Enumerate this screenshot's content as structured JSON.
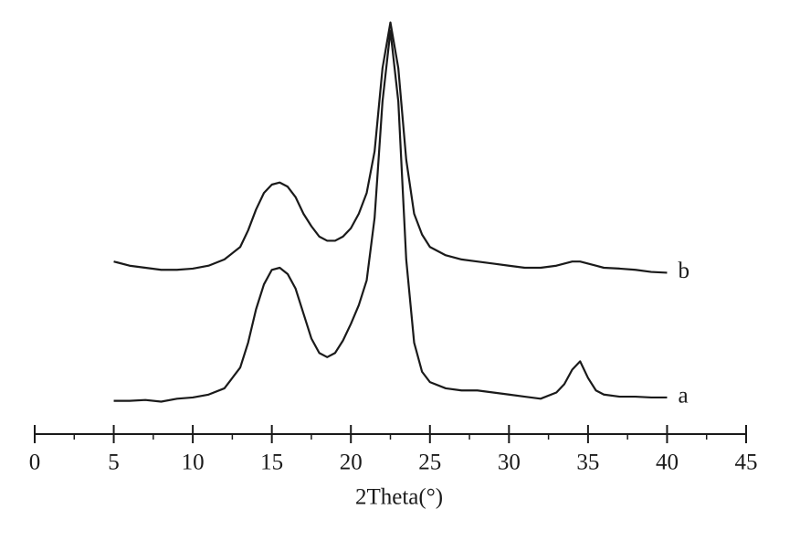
{
  "chart_data": {
    "type": "line",
    "x_label": "2Theta(°)",
    "x": [
      5,
      6,
      7,
      8,
      9,
      10,
      11,
      12,
      13,
      13.5,
      14,
      14.5,
      15,
      15.5,
      16,
      16.5,
      17,
      17.5,
      18,
      18.5,
      19,
      19.5,
      20,
      20.5,
      21,
      21.5,
      22,
      22.5,
      23,
      23.5,
      24,
      24.5,
      25,
      26,
      27,
      28,
      29,
      30,
      31,
      32,
      33,
      33.5,
      34,
      34.5,
      35,
      35.5,
      36,
      37,
      38,
      39,
      40
    ],
    "series": [
      {
        "name": "a",
        "color": "#1a1a1a",
        "values": [
          8,
          8,
          8.2,
          7.8,
          8.5,
          8.8,
          9.5,
          11,
          16,
          22,
          30,
          36,
          39.5,
          40,
          38.5,
          35,
          29,
          23,
          19.5,
          18.5,
          19.5,
          22.5,
          26.5,
          31,
          37,
          52,
          80,
          97,
          80,
          42,
          22,
          15,
          12.5,
          11,
          10.5,
          10.5,
          10,
          9.5,
          9,
          8.5,
          10,
          12,
          15.5,
          17.5,
          13.5,
          10.5,
          9.5,
          9,
          9,
          8.8,
          8.8
        ]
      },
      {
        "name": "b",
        "color": "#1a1a1a",
        "values": [
          41.5,
          40.5,
          40,
          39.5,
          39.5,
          39.8,
          40.5,
          42,
          45,
          49,
          54,
          58,
          60,
          60.5,
          59.5,
          57,
          53,
          50,
          47.5,
          46.5,
          46.5,
          47.5,
          49.5,
          53,
          58,
          68,
          88,
          99,
          88,
          66,
          53,
          48,
          45,
          43,
          42,
          41.5,
          41,
          40.5,
          40,
          40,
          40.5,
          41,
          41.5,
          41.5,
          41,
          40.5,
          40,
          39.8,
          39.5,
          39,
          38.8
        ]
      }
    ],
    "xlim": [
      0,
      45
    ],
    "xticks": [
      0,
      5,
      10,
      15,
      20,
      25,
      30,
      35,
      40,
      45
    ],
    "xminorticks": [
      2.5,
      7.5,
      12.5,
      17.5,
      22.5,
      27.5,
      32.5,
      37.5,
      42.5
    ],
    "ylim": [
      0,
      100
    ]
  }
}
